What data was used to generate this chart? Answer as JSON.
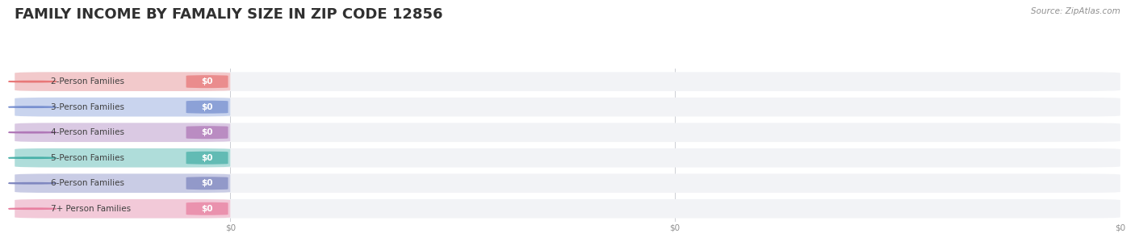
{
  "title": "FAMILY INCOME BY FAMALIY SIZE IN ZIP CODE 12856",
  "source": "Source: ZipAtlas.com",
  "categories": [
    "2-Person Families",
    "3-Person Families",
    "4-Person Families",
    "5-Person Families",
    "6-Person Families",
    "7+ Person Families"
  ],
  "values": [
    0,
    0,
    0,
    0,
    0,
    0
  ],
  "value_labels": [
    "$0",
    "$0",
    "$0",
    "$0",
    "$0",
    "$0"
  ],
  "bar_colors": [
    "#f2a8a8",
    "#a8bce8",
    "#c8a8d4",
    "#78ccc4",
    "#a8acd8",
    "#f2a8c0"
  ],
  "circle_colors": [
    "#e87878",
    "#7890d0",
    "#b078b8",
    "#48b0a8",
    "#8088c0",
    "#e880a0"
  ],
  "bg_color": "#ffffff",
  "bar_bg_color": "#f2f3f6",
  "title_color": "#303030",
  "label_color": "#404040",
  "tick_color": "#909090",
  "source_color": "#909090",
  "bar_height": 0.75,
  "title_fontsize": 13,
  "label_fontsize": 7.5,
  "value_fontsize": 7.5,
  "source_fontsize": 7.5,
  "xtick_positions": [
    0.5,
    1.0
  ],
  "xtick_labels": [
    "$0",
    "$0"
  ]
}
